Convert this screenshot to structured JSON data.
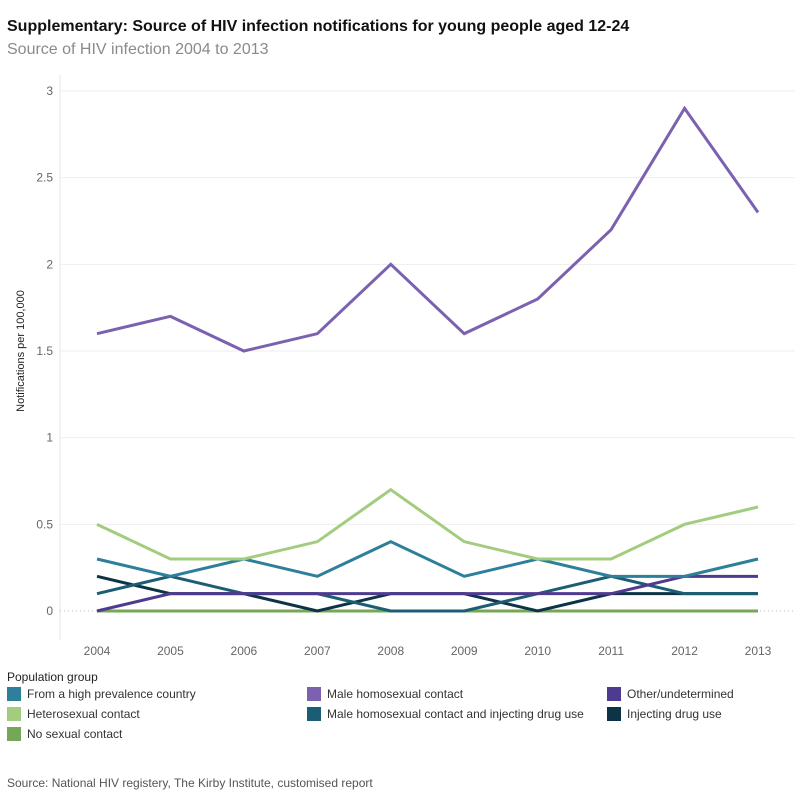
{
  "title": "Supplementary: Source of HIV infection notifications for young people aged 12-24",
  "subtitle": "Source of HIV infection 2004 to 2013",
  "legend_title": "Population group",
  "source": "Source: National HIV registery, The Kirby Institute, customised report",
  "chart_data": {
    "type": "line",
    "ylabel": "Notifications per 100,000",
    "xlabel": "",
    "ylim": [
      0,
      3
    ],
    "yticks": [
      "0",
      "0.5",
      "1",
      "1.5",
      "2",
      "2.5",
      "3"
    ],
    "yticks_values": [
      0,
      0.5,
      1,
      1.5,
      2,
      2.5,
      3
    ],
    "categories": [
      "2004",
      "2005",
      "2006",
      "2007",
      "2008",
      "2009",
      "2010",
      "2011",
      "2012",
      "2013"
    ],
    "grid": true,
    "legend_position": "bottom",
    "series": [
      {
        "name": "From a high prevalence country",
        "color": "#2d7f9a",
        "values": [
          0.3,
          0.2,
          0.3,
          0.2,
          0.4,
          0.2,
          0.3,
          0.2,
          0.2,
          0.3
        ]
      },
      {
        "name": "Male homosexual contact",
        "color": "#7b61b0",
        "values": [
          1.6,
          1.7,
          1.5,
          1.6,
          2.0,
          1.6,
          1.8,
          2.2,
          2.9,
          2.3
        ]
      },
      {
        "name": "Other/undetermined",
        "color": "#4e3a8f",
        "values": [
          0,
          0.1,
          0.1,
          0.1,
          0.1,
          0.1,
          0.1,
          0.1,
          0.2,
          0.2
        ]
      },
      {
        "name": "Heterosexual contact",
        "color": "#a3cc7f",
        "values": [
          0.5,
          0.3,
          0.3,
          0.4,
          0.7,
          0.4,
          0.3,
          0.3,
          0.5,
          0.6
        ]
      },
      {
        "name": "Male homosexual contact and injecting drug use",
        "color": "#1b5e74",
        "values": [
          0.1,
          0.2,
          0.1,
          0.1,
          0,
          0,
          0.1,
          0.2,
          0.1,
          0.1
        ]
      },
      {
        "name": "Injecting drug use",
        "color": "#0c3346",
        "values": [
          0.2,
          0.1,
          0.1,
          0,
          0.1,
          0.1,
          0,
          0.1,
          0.1,
          0.1
        ]
      },
      {
        "name": "No sexual contact",
        "color": "#76a757",
        "values": [
          0,
          0,
          0,
          0,
          0,
          0,
          0,
          0,
          0,
          0
        ]
      }
    ]
  }
}
